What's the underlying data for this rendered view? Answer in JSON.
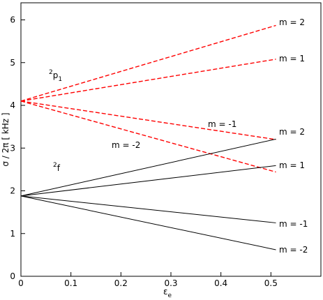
{
  "chart_data": {
    "type": "line",
    "x_label": {
      "text": "ε",
      "sub": "e"
    },
    "y_label": "σ / 2π [ kHz ]",
    "x": [
      0,
      0.51
    ],
    "series": [
      {
        "name": "m = 2",
        "color": "#ff0000",
        "dashed": true,
        "values": [
          4.1,
          5.87
        ]
      },
      {
        "name": "m = 1",
        "color": "#ff0000",
        "dashed": true,
        "values": [
          4.1,
          5.08
        ]
      },
      {
        "name": "m = -1",
        "color": "#ff0000",
        "dashed": true,
        "values": [
          4.1,
          3.2
        ]
      },
      {
        "name": "m = -2",
        "color": "#ff0000",
        "dashed": true,
        "values": [
          4.1,
          2.44
        ]
      },
      {
        "name": "m = 2",
        "color": "#000000",
        "dashed": false,
        "values": [
          1.88,
          3.21
        ]
      },
      {
        "name": "m = 1",
        "color": "#000000",
        "dashed": false,
        "values": [
          1.88,
          2.59
        ]
      },
      {
        "name": "m = -1",
        "color": "#000000",
        "dashed": false,
        "values": [
          1.88,
          1.25
        ]
      },
      {
        "name": "m = -2",
        "color": "#000000",
        "dashed": false,
        "values": [
          1.88,
          0.62
        ]
      }
    ],
    "annotations": [
      {
        "sup": "2",
        "text": "p",
        "sub": "1"
      },
      {
        "sup": "2",
        "text": "f"
      }
    ],
    "xlim": [
      0,
      0.6
    ],
    "ylim": [
      0,
      6.4
    ],
    "xticks": [
      0,
      0.1,
      0.2,
      0.3,
      0.4,
      0.5
    ],
    "yticks": [
      0,
      1,
      2,
      3,
      4,
      5,
      6
    ]
  }
}
